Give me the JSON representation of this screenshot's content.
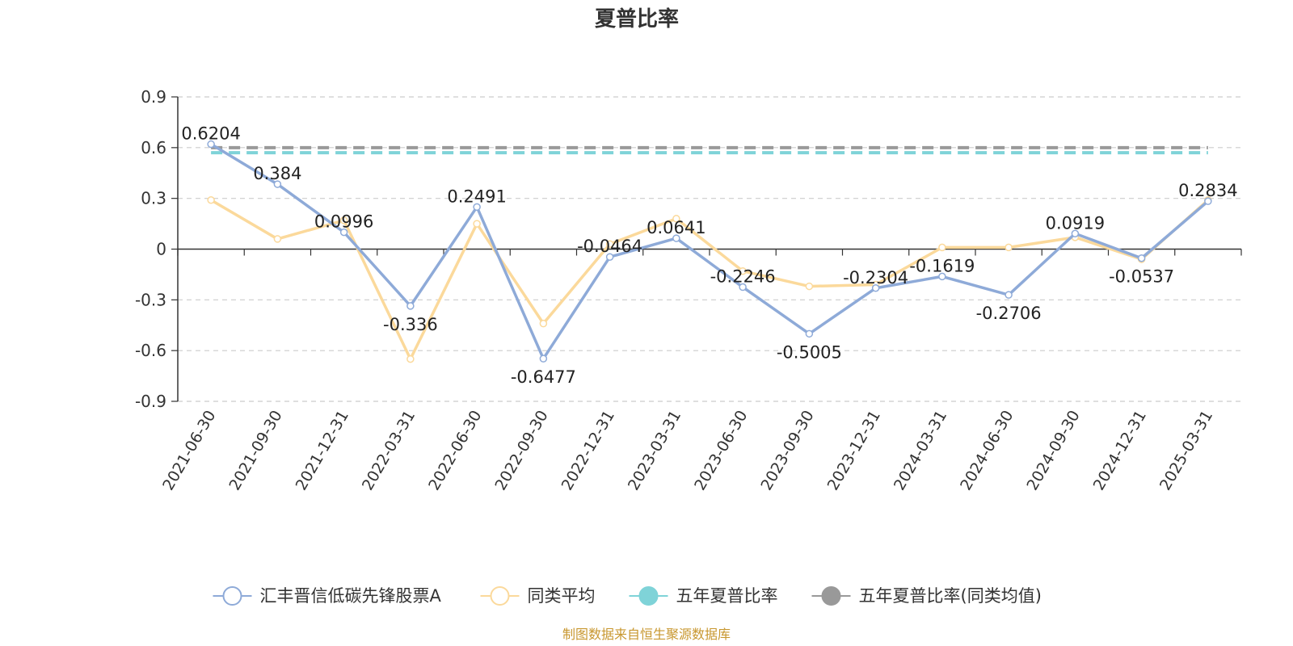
{
  "chart_data": {
    "type": "line",
    "title": "夏普比率",
    "x": [
      "2021-06-30",
      "2021-09-30",
      "2021-12-31",
      "2022-03-31",
      "2022-06-30",
      "2022-09-30",
      "2022-12-31",
      "2023-03-31",
      "2023-06-30",
      "2023-09-30",
      "2023-12-31",
      "2024-03-31",
      "2024-06-30",
      "2024-09-30",
      "2024-12-31",
      "2025-03-31"
    ],
    "ylim": [
      -0.9,
      0.9
    ],
    "yticks": [
      "0.9",
      "0.6",
      "0.3",
      "0",
      "-0.3",
      "-0.6",
      "-0.9"
    ],
    "grid": true,
    "legend_position": "bottom",
    "series": [
      {
        "name": "汇丰晋信低碳先锋股票A",
        "color": "#8eaad8",
        "values": [
          0.6204,
          0.384,
          0.0996,
          -0.336,
          0.2491,
          -0.6477,
          -0.0464,
          0.0641,
          -0.2246,
          -0.5005,
          -0.2304,
          -0.1619,
          -0.2706,
          0.0919,
          -0.0537,
          0.2834
        ],
        "labels": [
          "0.6204",
          "0.384",
          "0.0996",
          "-0.336",
          "0.2491",
          "-0.6477",
          "-0.0464",
          "0.0641",
          "-0.2246",
          "-0.5005",
          "-0.2304",
          "-0.1619",
          "-0.2706",
          "0.0919",
          "-0.0537",
          "0.2834"
        ]
      },
      {
        "name": "同类平均",
        "color": "#fbd99b",
        "values": [
          0.29,
          0.06,
          0.17,
          -0.65,
          0.15,
          -0.44,
          0.03,
          0.18,
          -0.13,
          -0.22,
          -0.21,
          0.01,
          0.01,
          0.07,
          -0.06,
          0.29
        ]
      },
      {
        "name": "五年夏普比率",
        "color": "#7fd3d8",
        "constant": 0.57
      },
      {
        "name": "五年夏普比率(同类均值)",
        "color": "#999999",
        "constant": 0.6
      }
    ],
    "source": "制图数据来自恒生聚源数据库"
  }
}
